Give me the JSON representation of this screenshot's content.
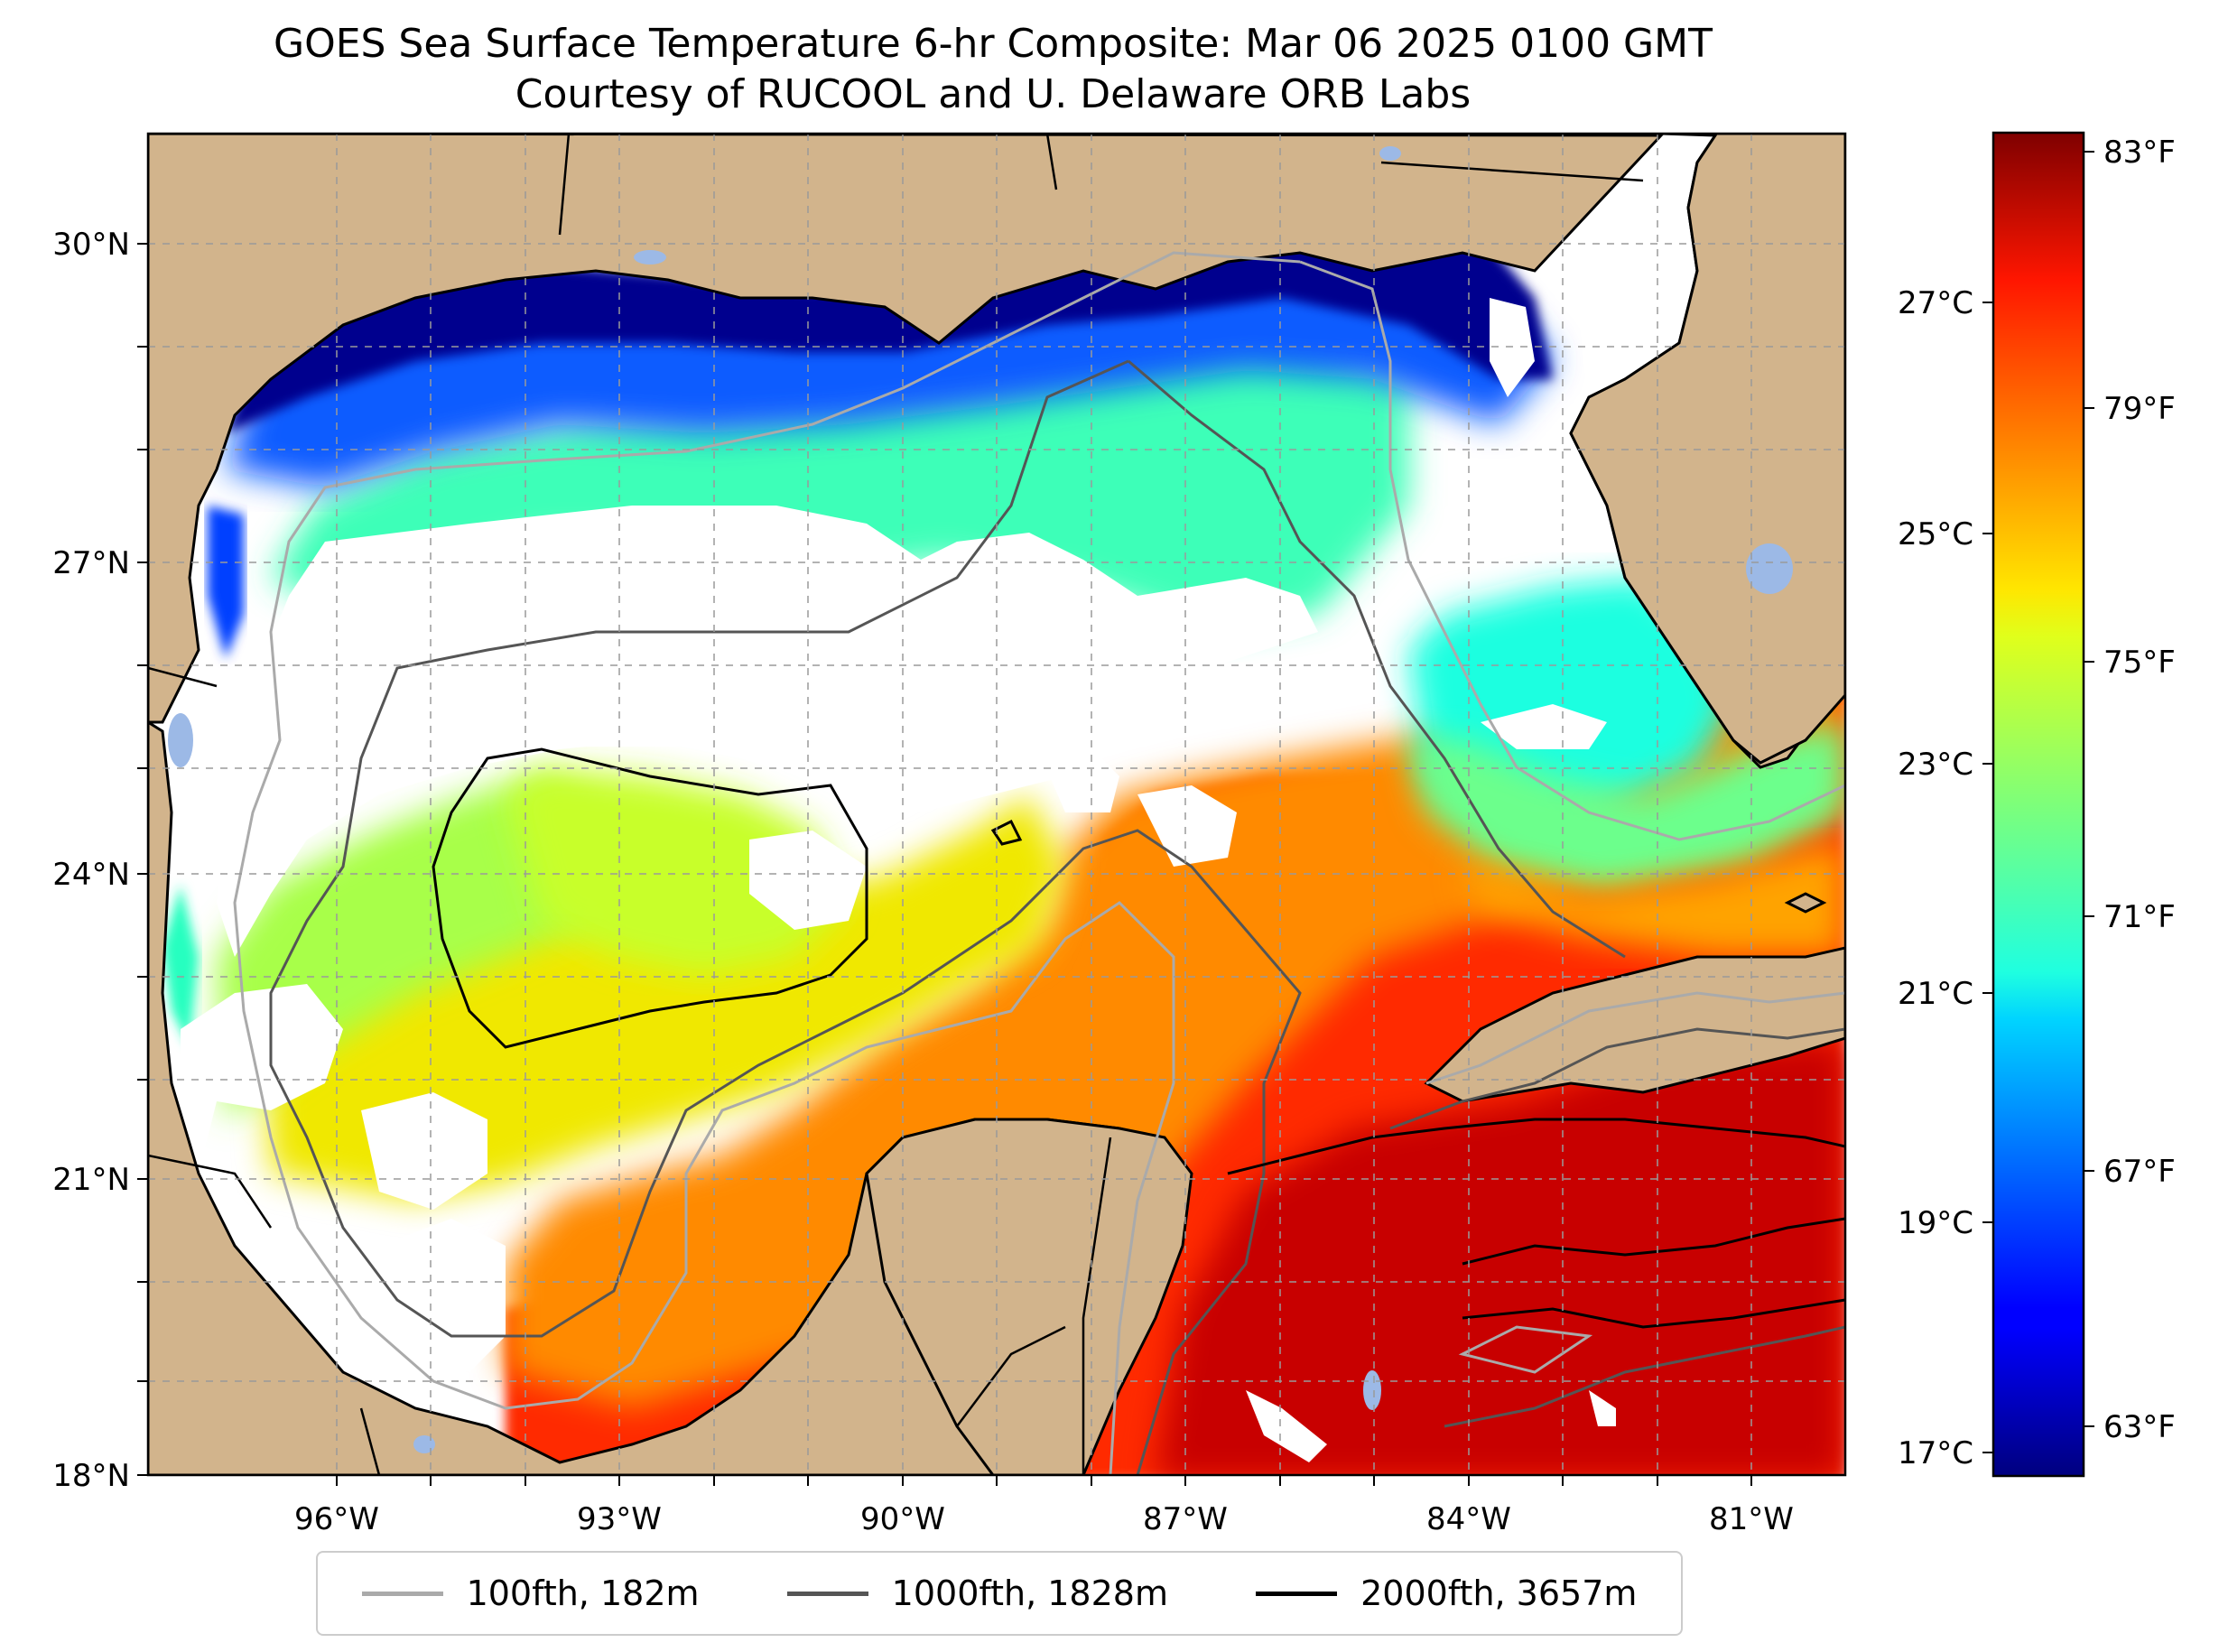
{
  "title_line1": "GOES Sea Surface Temperature 6-hr Composite: Mar 06 2025 0100 GMT",
  "title_line2": "Courtesy of RUCOOL and U. Delaware ORB Labs",
  "map": {
    "lon_range": [
      -98,
      -80
    ],
    "lat_range": [
      18,
      31
    ],
    "lon_ticks": [
      "96°W",
      "93°W",
      "90°W",
      "87°W",
      "84°W",
      "81°W"
    ],
    "lat_ticks": [
      "30°N",
      "27°N",
      "24°N",
      "21°N",
      "18°N"
    ],
    "land_color": "#d2b48c",
    "gridlines": true
  },
  "colorbar": {
    "colormap": "jet",
    "celsius_range": [
      16.8,
      28.4
    ],
    "celsius_ticks": [
      "27°C",
      "25°C",
      "23°C",
      "21°C",
      "19°C",
      "17°C"
    ],
    "fahrenheit_ticks": [
      "83°F",
      "79°F",
      "75°F",
      "71°F",
      "67°F",
      "63°F"
    ]
  },
  "legend": [
    {
      "label": "100fth, 182m",
      "color": "#aaaaaa"
    },
    {
      "label": "1000fth, 1828m",
      "color": "#555555"
    },
    {
      "label": "2000fth, 3657m",
      "color": "#000000"
    }
  ]
}
